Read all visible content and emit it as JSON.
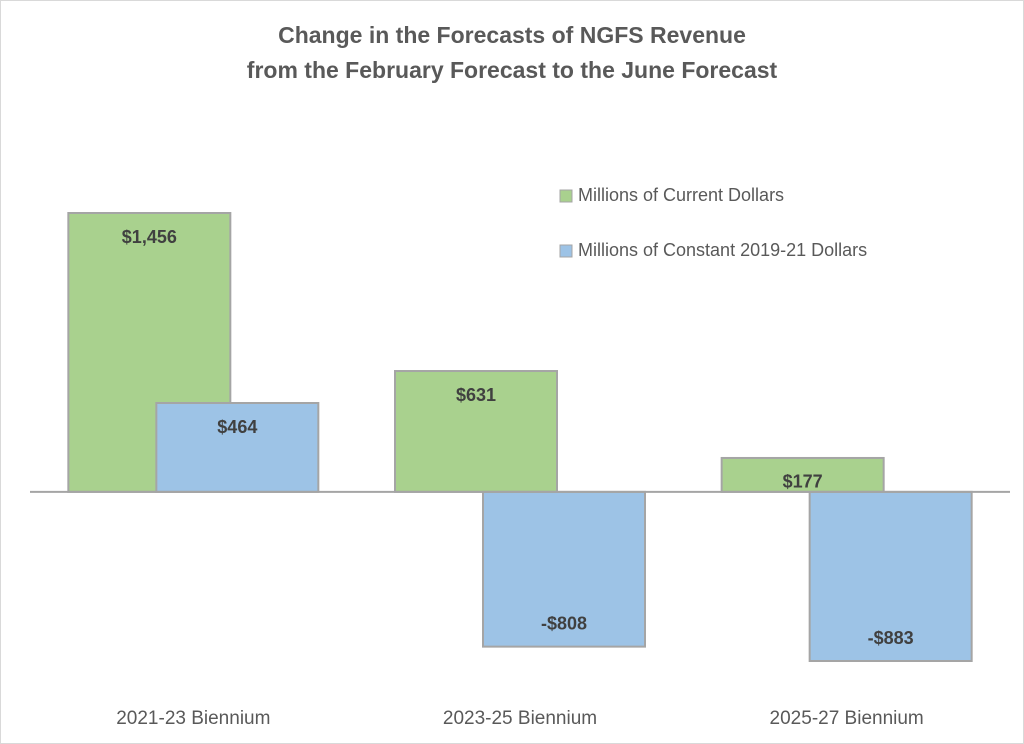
{
  "chart_data": {
    "type": "bar",
    "title": [
      "Change in the Forecasts of NGFS Revenue",
      "from the February Forecast to the June Forecast"
    ],
    "categories": [
      "2021-23 Biennium",
      "2023-25 Biennium",
      "2025-27 Biennium"
    ],
    "series": [
      {
        "name": "Millions of Current Dollars",
        "color": "#a9d18e",
        "values": [
          1456,
          631,
          177
        ],
        "value_labels": [
          "$1,456",
          "$631",
          "$177"
        ]
      },
      {
        "name": "Millions of Constant 2019-21 Dollars",
        "color": "#9dc3e6",
        "values": [
          464,
          -808,
          -883
        ],
        "value_labels": [
          "$464",
          "-$808",
          "-$883"
        ]
      }
    ],
    "legend": "upper right"
  }
}
